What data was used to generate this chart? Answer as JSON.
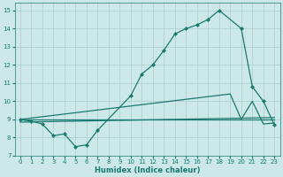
{
  "xlabel": "Humidex (Indice chaleur)",
  "xlim": [
    -0.5,
    23.5
  ],
  "ylim": [
    7,
    15.4
  ],
  "yticks": [
    7,
    8,
    9,
    10,
    11,
    12,
    13,
    14,
    15
  ],
  "xticks": [
    0,
    1,
    2,
    3,
    4,
    5,
    6,
    7,
    8,
    9,
    10,
    11,
    12,
    13,
    14,
    15,
    16,
    17,
    18,
    19,
    20,
    21,
    22,
    23
  ],
  "bg_color": "#cce8e8",
  "grid_color": "#aacece",
  "line_color": "#1a7a6e",
  "line1_x": [
    0,
    1,
    2,
    3,
    4,
    5,
    6,
    7,
    10,
    11,
    12,
    13,
    14,
    15,
    16,
    17,
    18,
    20,
    21,
    22,
    23
  ],
  "line1_y": [
    9.0,
    8.9,
    8.75,
    8.1,
    8.2,
    7.5,
    7.6,
    8.4,
    10.3,
    11.5,
    12.0,
    12.8,
    13.7,
    14.0,
    14.2,
    14.5,
    15.0,
    14.0,
    10.8,
    10.0,
    8.7
  ],
  "line2_x": [
    0,
    23
  ],
  "line2_y": [
    9.0,
    9.0
  ],
  "line3_x": [
    0,
    19,
    20,
    21,
    22,
    23
  ],
  "line3_y": [
    9.0,
    10.4,
    9.0,
    10.0,
    8.75,
    8.8
  ],
  "line4_x": [
    0,
    23
  ],
  "line4_y": [
    8.85,
    9.1
  ]
}
